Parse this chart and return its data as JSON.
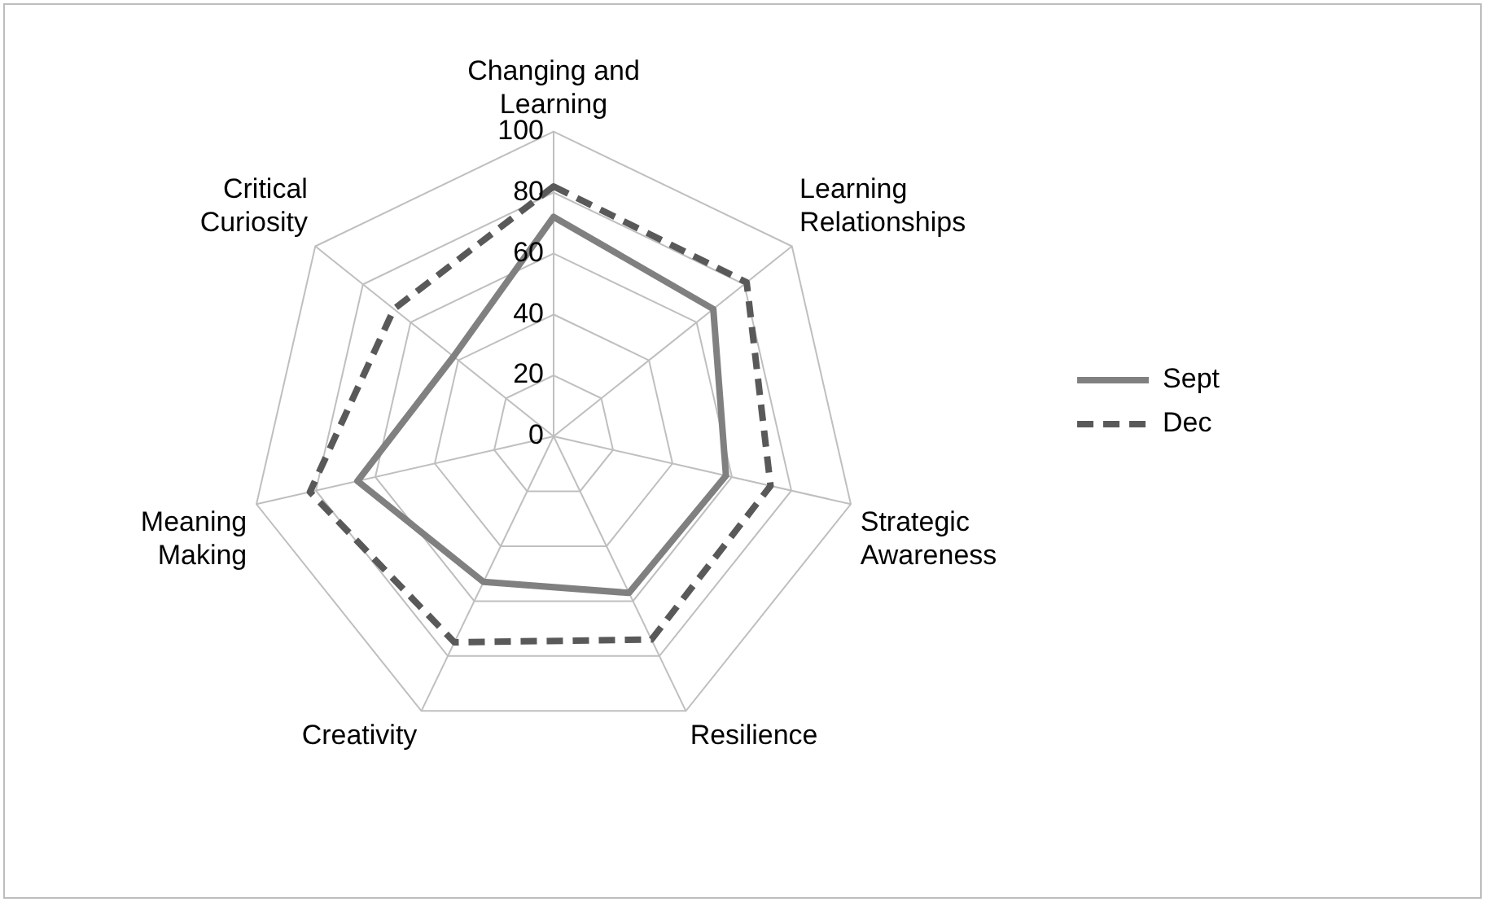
{
  "chart_data": {
    "type": "radar",
    "categories": [
      "Changing and Learning",
      "Learning Relationships",
      "Strategic Awareness",
      "Resilience",
      "Creativity",
      "Meaning Making",
      "Critical Curiosity"
    ],
    "series": [
      {
        "name": "Sept",
        "color": "#808080",
        "line_style": "solid",
        "values": [
          72,
          67,
          58,
          57,
          53,
          66,
          42
        ]
      },
      {
        "name": "Dec",
        "color": "#595959",
        "line_style": "dashed",
        "values": [
          82,
          81,
          73,
          74,
          75,
          82,
          67
        ]
      }
    ],
    "ylim": [
      0,
      100
    ],
    "yticks": [
      0,
      20,
      40,
      60,
      80,
      100
    ],
    "grid": true,
    "legend": "right",
    "marker": "none"
  }
}
